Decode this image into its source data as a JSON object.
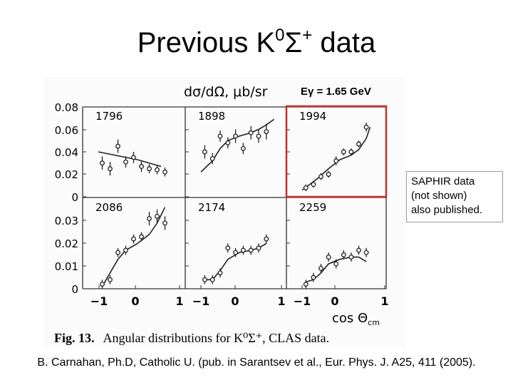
{
  "slide": {
    "title_main": "Previous K",
    "title_sup1": "0",
    "title_sigma": "Σ",
    "title_sup2": "+",
    "title_end": " data",
    "energy_label": "Eγ = 1.65 GeV",
    "callout_lines": [
      "SAPHIR data",
      "(not shown)",
      "also published."
    ],
    "citation": "B. Carnahan, Ph.D, Catholic U. (pub. in Sarantsev et al., Eur. Phys. J. A25, 411 (2005).",
    "highlight_color": "#c0302a"
  },
  "chart_data": {
    "type": "scatter",
    "ylabel": "dσ/dΩ, μb/sr",
    "xlabel_main": "cos Θ",
    "xlabel_sub": "cm",
    "caption_bold": "Fig. 13.",
    "caption_text": "Angular distributions for K⁰Σ⁺, CLAS data.",
    "xlim": [
      -1,
      1
    ],
    "xticks": [
      "-1",
      "0",
      "1"
    ],
    "rows": [
      {
        "ylim": [
          0,
          0.08
        ],
        "yticks": [
          "0",
          "0.02",
          "0.04",
          "0.06",
          "0.08"
        ]
      },
      {
        "ylim": [
          0,
          0.04
        ],
        "yticks": [
          "0",
          "0.01",
          "0.02",
          "0.03"
        ]
      }
    ],
    "panels": [
      {
        "label": "1796",
        "row": 0,
        "col": 0,
        "highlight": false,
        "x": [
          -0.9,
          -0.7,
          -0.5,
          -0.3,
          -0.1,
          0.1,
          0.3,
          0.5,
          0.7
        ],
        "y": [
          0.03,
          0.025,
          0.045,
          0.031,
          0.035,
          0.027,
          0.025,
          0.024,
          0.022
        ],
        "err": [
          0.006,
          0.006,
          0.006,
          0.005,
          0.005,
          0.005,
          0.004,
          0.004,
          0.004
        ],
        "curve_x": [
          -1,
          0,
          0.6
        ],
        "curve_y": [
          0.04,
          0.033,
          0.027
        ]
      },
      {
        "label": "1898",
        "row": 0,
        "col": 1,
        "highlight": false,
        "x": [
          -0.9,
          -0.7,
          -0.5,
          -0.3,
          -0.1,
          0.1,
          0.3,
          0.5,
          0.7
        ],
        "y": [
          0.04,
          0.034,
          0.054,
          0.048,
          0.054,
          0.043,
          0.057,
          0.054,
          0.058
        ],
        "err": [
          0.006,
          0.005,
          0.005,
          0.005,
          0.006,
          0.005,
          0.006,
          0.006,
          0.007
        ],
        "curve_x": [
          -1,
          -0.7,
          -0.5,
          -0.3,
          0,
          0.3,
          0.5,
          0.7,
          0.9
        ],
        "curve_y": [
          0.022,
          0.032,
          0.043,
          0.05,
          0.054,
          0.057,
          0.06,
          0.064,
          0.069
        ]
      },
      {
        "label": "1994",
        "row": 0,
        "col": 2,
        "highlight": true,
        "x": [
          -0.9,
          -0.7,
          -0.5,
          -0.3,
          -0.1,
          0.1,
          0.3,
          0.5,
          0.7
        ],
        "y": [
          0.008,
          0.011,
          0.018,
          0.02,
          0.032,
          0.04,
          0.04,
          0.047,
          0.062
        ],
        "err": [
          0.003,
          0.003,
          0.003,
          0.003,
          0.004,
          0.003,
          0.003,
          0.003,
          0.004
        ],
        "curve_x": [
          -1,
          -0.6,
          -0.3,
          0,
          0.3,
          0.5,
          0.7,
          0.8
        ],
        "curve_y": [
          0.006,
          0.016,
          0.025,
          0.033,
          0.037,
          0.042,
          0.052,
          0.062
        ]
      },
      {
        "label": "2086",
        "row": 1,
        "col": 0,
        "highlight": false,
        "x": [
          -0.9,
          -0.7,
          -0.5,
          -0.3,
          -0.1,
          0.1,
          0.3,
          0.5,
          0.7
        ],
        "y": [
          0.002,
          0.004,
          0.016,
          0.017,
          0.022,
          0.023,
          0.031,
          0.032,
          0.029
        ],
        "err": [
          0.002,
          0.002,
          0.002,
          0.002,
          0.002,
          0.002,
          0.003,
          0.003,
          0.003
        ],
        "curve_x": [
          -0.9,
          -0.7,
          -0.5,
          -0.3,
          0,
          0.3,
          0.5,
          0.7
        ],
        "curve_y": [
          0.001,
          0.007,
          0.013,
          0.017,
          0.02,
          0.024,
          0.029,
          0.036
        ]
      },
      {
        "label": "2174",
        "row": 1,
        "col": 1,
        "highlight": false,
        "x": [
          -0.9,
          -0.7,
          -0.5,
          -0.3,
          -0.1,
          0.1,
          0.3,
          0.5,
          0.7
        ],
        "y": [
          0.004,
          0.004,
          0.007,
          0.018,
          0.016,
          0.017,
          0.017,
          0.018,
          0.022
        ],
        "err": [
          0.002,
          0.002,
          0.002,
          0.002,
          0.002,
          0.002,
          0.002,
          0.002,
          0.002
        ],
        "curve_x": [
          -0.9,
          -0.7,
          -0.5,
          -0.3,
          0,
          0.3,
          0.5,
          0.7
        ],
        "curve_y": [
          0.004,
          0.004,
          0.008,
          0.013,
          0.016,
          0.017,
          0.018,
          0.02
        ]
      },
      {
        "label": "2259",
        "row": 1,
        "col": 2,
        "highlight": false,
        "x": [
          -0.9,
          -0.7,
          -0.5,
          -0.3,
          -0.1,
          0.1,
          0.3,
          0.5,
          0.7
        ],
        "y": [
          0.002,
          0.005,
          0.009,
          0.014,
          0.011,
          0.015,
          0.014,
          0.017,
          0.016
        ],
        "err": [
          0.002,
          0.002,
          0.002,
          0.002,
          0.002,
          0.002,
          0.002,
          0.002,
          0.002
        ],
        "curve_x": [
          -0.9,
          -0.7,
          -0.5,
          -0.3,
          0,
          0.3,
          0.5,
          0.7
        ],
        "curve_y": [
          0.003,
          0.004,
          0.007,
          0.011,
          0.013,
          0.014,
          0.014,
          0.012
        ]
      }
    ]
  }
}
